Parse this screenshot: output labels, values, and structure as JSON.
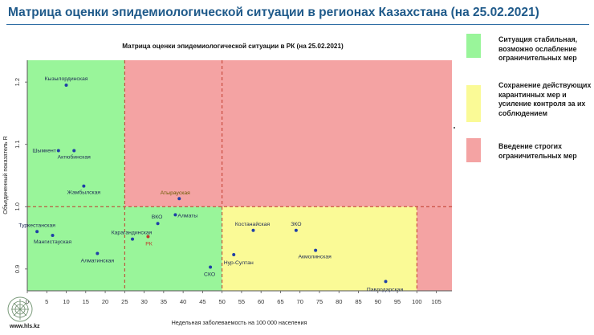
{
  "slide": {
    "title": "Матрица оценки эпидемиологической ситуации в регионах Казахстана (на 25.02.2021)",
    "footer_url": "www.hls.kz"
  },
  "legend": [
    {
      "color": "#99f59a",
      "text": "Ситуация стабильная, возможно ослабление ограничительных мер"
    },
    {
      "color": "#fafa96",
      "text": "Сохранение действующих карантинных мер и усиление контроля за их соблюдением"
    },
    {
      "color": "#f4a3a3",
      "text": "Введение строгих ограничительных мер"
    }
  ],
  "chart_data": {
    "type": "scatter",
    "title": "Матрица оценки эпидемиологической ситуации в РК (на 25.02.2021)",
    "xlabel": "Недельная заболеваемость на 100 000 населения",
    "ylabel": "Объединенный показатель R",
    "xlim": [
      0,
      109
    ],
    "ylim": [
      0.865,
      1.235
    ],
    "xticks": [
      0,
      5,
      10,
      15,
      20,
      25,
      30,
      35,
      40,
      45,
      50,
      55,
      60,
      65,
      70,
      75,
      80,
      85,
      90,
      95,
      100,
      105
    ],
    "yticks": [
      0.9,
      1.0,
      1.1,
      1.2
    ],
    "thresholds": {
      "x_stable": 25,
      "x_moderate": 50,
      "x_strict": 100,
      "r": 1.0
    },
    "zones": {
      "stable": "#99f59a",
      "moderate": "#fafa96",
      "strict": "#f4a3a3"
    },
    "points": [
      {
        "name": "Кызылординская",
        "x": 10,
        "y": 1.195
      },
      {
        "name": "Шымкент",
        "x": 8,
        "y": 1.09
      },
      {
        "name": "Актюбинская",
        "x": 12,
        "y": 1.09
      },
      {
        "name": "Жамбылская",
        "x": 14.5,
        "y": 1.033
      },
      {
        "name": "Атырауская",
        "x": 39,
        "y": 1.013
      },
      {
        "name": "ВКО",
        "x": 33.5,
        "y": 0.973
      },
      {
        "name": "Алматы",
        "x": 38,
        "y": 0.987
      },
      {
        "name": "Туркестанская",
        "x": 2.5,
        "y": 0.96
      },
      {
        "name": "Мангистауская",
        "x": 6.5,
        "y": 0.954
      },
      {
        "name": "Карагандинская",
        "x": 27,
        "y": 0.948
      },
      {
        "name": "РК",
        "x": 31,
        "y": 0.952
      },
      {
        "name": "Алматинская",
        "x": 18,
        "y": 0.925
      },
      {
        "name": "Костанайская",
        "x": 58,
        "y": 0.962
      },
      {
        "name": "ЗКО",
        "x": 69,
        "y": 0.962
      },
      {
        "name": "Акмолинская",
        "x": 74,
        "y": 0.93
      },
      {
        "name": "Нур-Султан",
        "x": 53,
        "y": 0.923
      },
      {
        "name": "СКО",
        "x": 47,
        "y": 0.903
      },
      {
        "name": "Павлодарская",
        "x": 92,
        "y": 0.88
      }
    ]
  }
}
